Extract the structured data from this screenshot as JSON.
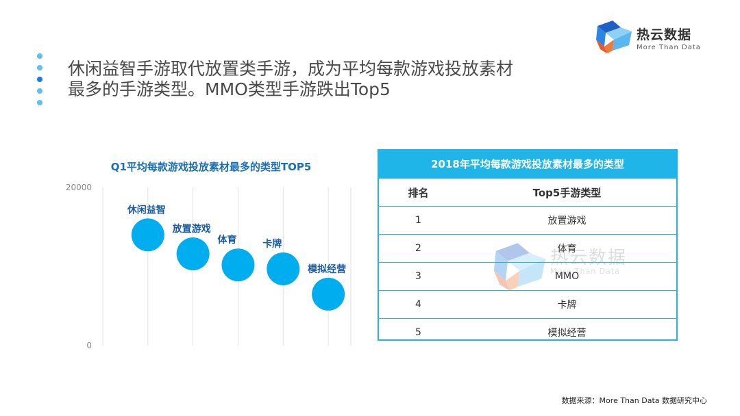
{
  "header": {
    "title_line1": "休闲益智手游取代放置类手游，成为平均每款游戏投放素材",
    "title_line2": "最多的手游类型。MMO类型手游跌出Top5"
  },
  "logo": {
    "name": "热云数据",
    "tagline": "More Than Data"
  },
  "chart_data": {
    "type": "scatter",
    "title": "Q1平均每款游戏投放素材最多的类型TOP5",
    "ylim": [
      0,
      20000
    ],
    "y_tick_labels": [
      "20000",
      "0"
    ],
    "grid": "vertical",
    "points": [
      {
        "label": "休闲益智",
        "rank": 1,
        "y": 14000
      },
      {
        "label": "放置游戏",
        "rank": 2,
        "y": 11600
      },
      {
        "label": "体育",
        "rank": 3,
        "y": 10200
      },
      {
        "label": "卡牌",
        "rank": 4,
        "y": 9700
      },
      {
        "label": "模拟经营",
        "rank": 5,
        "y": 6500
      }
    ],
    "colors": {
      "bubble": "#00aef0",
      "grid": "#e2e2e2",
      "label": "#1a5aa0"
    }
  },
  "table": {
    "title": "2018年平均每款游戏投放素材最多的类型",
    "col_rank": "排名",
    "col_type": "Top5手游类型",
    "rows": [
      {
        "rank": "1",
        "type": "放置游戏"
      },
      {
        "rank": "2",
        "type": "体育"
      },
      {
        "rank": "3",
        "type": "MMO"
      },
      {
        "rank": "4",
        "type": "卡牌"
      },
      {
        "rank": "5",
        "type": "模拟经营"
      }
    ]
  },
  "watermark": {
    "name": "热云数据",
    "tagline": "More Than Data"
  },
  "footer": {
    "source": "数据来源：More Than Data 数据研究中心"
  },
  "colors": {
    "accent": "#1fb5e8",
    "title_text": "#4a4a4a",
    "chart_title": "#1a6fb5"
  }
}
